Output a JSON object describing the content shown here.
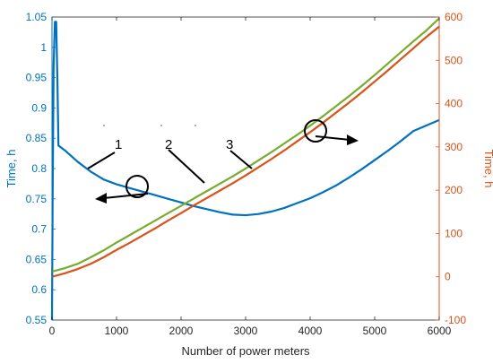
{
  "chart_data": {
    "type": "line",
    "xlabel": "Number of power meters",
    "ylabel_left": "Time, h",
    "ylabel_right": "Time, h",
    "xlim": [
      0,
      6000
    ],
    "ylim_left": [
      0.55,
      1.05
    ],
    "ylim_right": [
      -100,
      600
    ],
    "x_ticks": [
      "0",
      "1000",
      "2000",
      "3000",
      "4000",
      "5000",
      "6000"
    ],
    "y_left_ticks": [
      "0.55",
      "0.6",
      "0.65",
      "0.7",
      "0.75",
      "0.8",
      "0.85",
      "0.9",
      "0.95",
      "1",
      "1.05"
    ],
    "y_right_ticks": [
      "-100",
      "0",
      "100",
      "200",
      "300",
      "400",
      "500",
      "600"
    ],
    "grid": false,
    "colors": {
      "left_axis": "#0072BD",
      "right_axis": "#D95319",
      "green": "#77AC30",
      "axis": "#262626"
    },
    "series": [
      {
        "label": "1",
        "axis": "left",
        "color": "#0072BD",
        "points": [
          [
            0,
            0.55
          ],
          [
            10,
            0.75
          ],
          [
            25,
            0.97
          ],
          [
            45,
            1.042
          ],
          [
            65,
            1.042
          ],
          [
            85,
            0.94
          ],
          [
            100,
            0.838
          ],
          [
            200,
            0.83
          ],
          [
            400,
            0.811
          ],
          [
            600,
            0.795
          ],
          [
            800,
            0.782
          ],
          [
            1000,
            0.774
          ],
          [
            1200,
            0.768
          ],
          [
            1400,
            0.762
          ],
          [
            1600,
            0.756
          ],
          [
            1800,
            0.75
          ],
          [
            2000,
            0.744
          ],
          [
            2200,
            0.738
          ],
          [
            2400,
            0.733
          ],
          [
            2600,
            0.728
          ],
          [
            2800,
            0.724
          ],
          [
            3000,
            0.723
          ],
          [
            3200,
            0.725
          ],
          [
            3400,
            0.729
          ],
          [
            3600,
            0.735
          ],
          [
            3800,
            0.743
          ],
          [
            4000,
            0.751
          ],
          [
            4200,
            0.761
          ],
          [
            4400,
            0.772
          ],
          [
            4600,
            0.785
          ],
          [
            4800,
            0.799
          ],
          [
            5000,
            0.814
          ],
          [
            5200,
            0.829
          ],
          [
            5400,
            0.845
          ],
          [
            5600,
            0.862
          ],
          [
            5800,
            0.871
          ],
          [
            6000,
            0.88
          ]
        ]
      },
      {
        "label": "2",
        "axis": "right",
        "color": "#D95319",
        "points": [
          [
            0,
            0
          ],
          [
            200,
            8
          ],
          [
            400,
            18
          ],
          [
            600,
            30
          ],
          [
            800,
            45
          ],
          [
            1000,
            62
          ],
          [
            1200,
            78
          ],
          [
            1400,
            95
          ],
          [
            1600,
            112
          ],
          [
            1800,
            130
          ],
          [
            2000,
            147
          ],
          [
            2200,
            165
          ],
          [
            2400,
            182
          ],
          [
            2600,
            199
          ],
          [
            2800,
            216
          ],
          [
            3000,
            234
          ],
          [
            3200,
            253
          ],
          [
            3400,
            272
          ],
          [
            3600,
            292
          ],
          [
            3800,
            313
          ],
          [
            4000,
            334
          ],
          [
            4200,
            356
          ],
          [
            4400,
            379
          ],
          [
            4600,
            402
          ],
          [
            4800,
            426
          ],
          [
            5000,
            451
          ],
          [
            5200,
            476
          ],
          [
            5400,
            502
          ],
          [
            5600,
            528
          ],
          [
            5800,
            554
          ],
          [
            6000,
            578
          ]
        ]
      },
      {
        "label": "3",
        "axis": "right",
        "color": "#77AC30",
        "points": [
          [
            0,
            12
          ],
          [
            200,
            20
          ],
          [
            400,
            30
          ],
          [
            600,
            45
          ],
          [
            800,
            61
          ],
          [
            1000,
            79
          ],
          [
            1200,
            96
          ],
          [
            1400,
            113
          ],
          [
            1600,
            130
          ],
          [
            1800,
            147
          ],
          [
            2000,
            164
          ],
          [
            2200,
            181
          ],
          [
            2400,
            198
          ],
          [
            2600,
            215
          ],
          [
            2800,
            232
          ],
          [
            3000,
            250
          ],
          [
            3200,
            269
          ],
          [
            3400,
            288
          ],
          [
            3600,
            308
          ],
          [
            3800,
            328
          ],
          [
            4000,
            349
          ],
          [
            4200,
            371
          ],
          [
            4400,
            394
          ],
          [
            4600,
            417
          ],
          [
            4800,
            441
          ],
          [
            5000,
            466
          ],
          [
            5200,
            492
          ],
          [
            5400,
            518
          ],
          [
            5600,
            544
          ],
          [
            5800,
            569
          ],
          [
            6000,
            597
          ]
        ]
      }
    ],
    "annotations": [
      "1",
      "2",
      "3"
    ]
  }
}
